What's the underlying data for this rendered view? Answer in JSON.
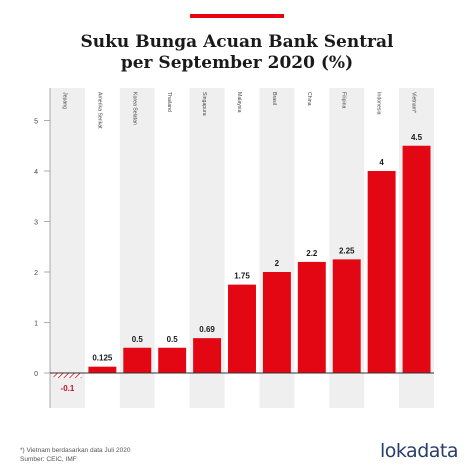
{
  "title_line1": "Suku Bunga Acuan Bank Sentral",
  "title_line2": "per September 2020 (%)",
  "footnote1": "*) Vietnam berdasarkan data Juli 2020",
  "footnote2": "Sumber: CEIC, IMF",
  "logo": "lokadata",
  "colors": {
    "accent": "#e30613",
    "bar": "#e30613",
    "negative": "#e30613",
    "label_negative": "#c8102e",
    "band": "#efefef",
    "axis": "#333333"
  },
  "chart_data": {
    "type": "bar",
    "categories": [
      "Jepang",
      "Amerika Serikat",
      "Korea Selatan",
      "Thailand",
      "Singapura",
      "Malaysia",
      "Brasil",
      "China",
      "Filipina",
      "Indonesia",
      "Vietnam*"
    ],
    "values": [
      -0.1,
      0.125,
      0.5,
      0.5,
      0.69,
      1.75,
      2,
      2.2,
      2.25,
      4,
      4.5
    ],
    "value_labels": [
      "-0.1",
      "0.125",
      "0.5",
      "0.5",
      "0.69",
      "1.75",
      "2",
      "2.2",
      "2.25",
      "4",
      "4.5"
    ],
    "ylim": [
      -0.5,
      5
    ],
    "yticks": [
      "0",
      "1",
      "2",
      "3",
      "4",
      "5"
    ],
    "title": "Suku Bunga Acuan Bank Sentral per September 2020 (%)",
    "xlabel": "",
    "ylabel": "",
    "grid": "alternating vertical bands",
    "legend": "none"
  }
}
